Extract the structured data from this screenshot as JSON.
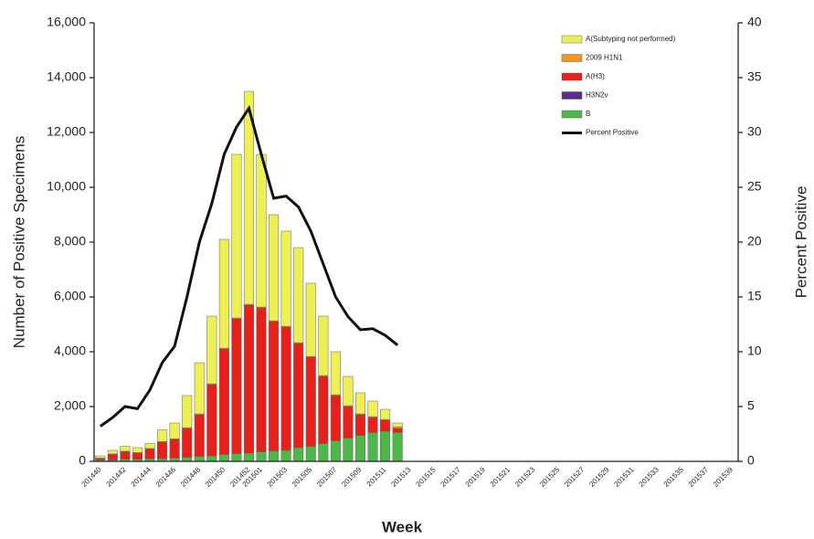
{
  "chart_data": {
    "type": "bar",
    "x_label": "Week",
    "y_label": "Number of Positive Specimens",
    "y2_label": "Percent Positive",
    "categories": [
      "201440",
      null,
      "201442",
      null,
      "201444",
      null,
      "201446",
      null,
      "201448",
      null,
      "201450",
      null,
      "201452",
      "201501",
      null,
      "201503",
      null,
      "201505",
      null,
      "201507",
      null,
      "201509",
      null,
      "201511",
      null,
      "201513",
      null,
      "201515",
      null,
      "201517",
      null,
      "201519",
      null,
      "201521",
      null,
      "201523",
      null,
      "201525",
      null,
      "201527",
      null,
      "201529",
      null,
      "201531",
      null,
      "201533",
      null,
      "201535",
      null,
      "201537",
      null,
      "201539"
    ],
    "ylim": [
      0,
      16000
    ],
    "yticks": [
      0,
      {
        "value": 2000,
        "label": "2,000"
      },
      {
        "value": 4000,
        "label": "4,000"
      },
      {
        "value": 6000,
        "label": "6,000"
      },
      {
        "value": 8000,
        "label": "8,000"
      },
      {
        "value": 10000,
        "label": "10,000"
      },
      {
        "value": 12000,
        "label": "12,000"
      },
      {
        "value": 14000,
        "label": "14,000"
      },
      {
        "value": 16000,
        "label": "16,000"
      }
    ],
    "y2lim": [
      0,
      40
    ],
    "y2ticks": [
      0,
      5,
      10,
      15,
      20,
      25,
      30,
      35,
      40
    ],
    "legend": "upper right",
    "series": [
      {
        "name": "A(Subtyping not performed)",
        "type": "bar",
        "color": "#eeee55",
        "values": [
          80,
          130,
          180,
          180,
          180,
          430,
          580,
          1170,
          1870,
          2470,
          3970,
          5970,
          7770,
          5570,
          3870,
          3470,
          3470,
          2670,
          2170,
          1570,
          1070,
          770,
          570,
          370,
          150,
          null,
          null,
          null,
          null,
          null,
          null,
          null,
          null,
          null,
          null,
          null,
          null,
          null,
          null,
          null,
          null,
          null,
          null,
          null,
          null,
          null,
          null,
          null,
          null,
          null,
          null,
          null
        ]
      },
      {
        "name": "2009 H1N1",
        "type": "bar",
        "color": "#f7941d",
        "values": [
          20,
          20,
          20,
          20,
          20,
          20,
          20,
          30,
          30,
          30,
          30,
          30,
          30,
          30,
          30,
          30,
          30,
          30,
          30,
          30,
          30,
          30,
          30,
          30,
          50,
          null,
          null,
          null,
          null,
          null,
          null,
          null,
          null,
          null,
          null,
          null,
          null,
          null,
          null,
          null,
          null,
          null,
          null,
          null,
          null,
          null,
          null,
          null,
          null,
          null,
          null,
          null
        ]
      },
      {
        "name": "A(H3)",
        "type": "bar",
        "color": "#e8201c",
        "values": [
          50,
          200,
          270,
          220,
          350,
          600,
          680,
          1050,
          1520,
          2600,
          3850,
          4920,
          5400,
          5250,
          4720,
          4500,
          3800,
          3250,
          2450,
          1650,
          1150,
          750,
          550,
          400,
          150,
          null,
          null,
          null,
          null,
          null,
          null,
          null,
          null,
          null,
          null,
          null,
          null,
          null,
          null,
          null,
          null,
          null,
          null,
          null,
          null,
          null,
          null,
          null,
          null,
          null,
          null,
          null
        ]
      },
      {
        "name": "H3N2v",
        "type": "bar",
        "color": "#5b2c8f",
        "values": [
          0,
          0,
          0,
          0,
          0,
          0,
          0,
          0,
          0,
          0,
          0,
          0,
          0,
          0,
          0,
          0,
          0,
          0,
          0,
          0,
          0,
          0,
          0,
          0,
          0,
          null,
          null,
          null,
          null,
          null,
          null,
          null,
          null,
          null,
          null,
          null,
          null,
          null,
          null,
          null,
          null,
          null,
          null,
          null,
          null,
          null,
          null,
          null,
          null,
          null,
          null,
          null
        ]
      },
      {
        "name": "B",
        "type": "bar",
        "color": "#4cb848",
        "values": [
          50,
          50,
          80,
          80,
          100,
          100,
          120,
          150,
          180,
          200,
          250,
          280,
          300,
          350,
          380,
          400,
          500,
          550,
          650,
          750,
          850,
          950,
          1050,
          1100,
          1050,
          null,
          null,
          null,
          null,
          null,
          null,
          null,
          null,
          null,
          null,
          null,
          null,
          null,
          null,
          null,
          null,
          null,
          null,
          null,
          null,
          null,
          null,
          null,
          null,
          null,
          null,
          null
        ]
      },
      {
        "name": "Percent Positive",
        "type": "line",
        "axis": "y2",
        "color": "#111111",
        "values": [
          3.2,
          4,
          5,
          4.8,
          6.5,
          9,
          10.5,
          15,
          20,
          23.5,
          28,
          30.5,
          32.2,
          28,
          24,
          24.2,
          23.2,
          21,
          18,
          15,
          13.2,
          12,
          12.1,
          11.5,
          10.6,
          null,
          null,
          null,
          null,
          null,
          null,
          null,
          null,
          null,
          null,
          null,
          null,
          null,
          null,
          null,
          null,
          null,
          null,
          null,
          null,
          null,
          null,
          null,
          null,
          null,
          null,
          null
        ]
      }
    ]
  }
}
